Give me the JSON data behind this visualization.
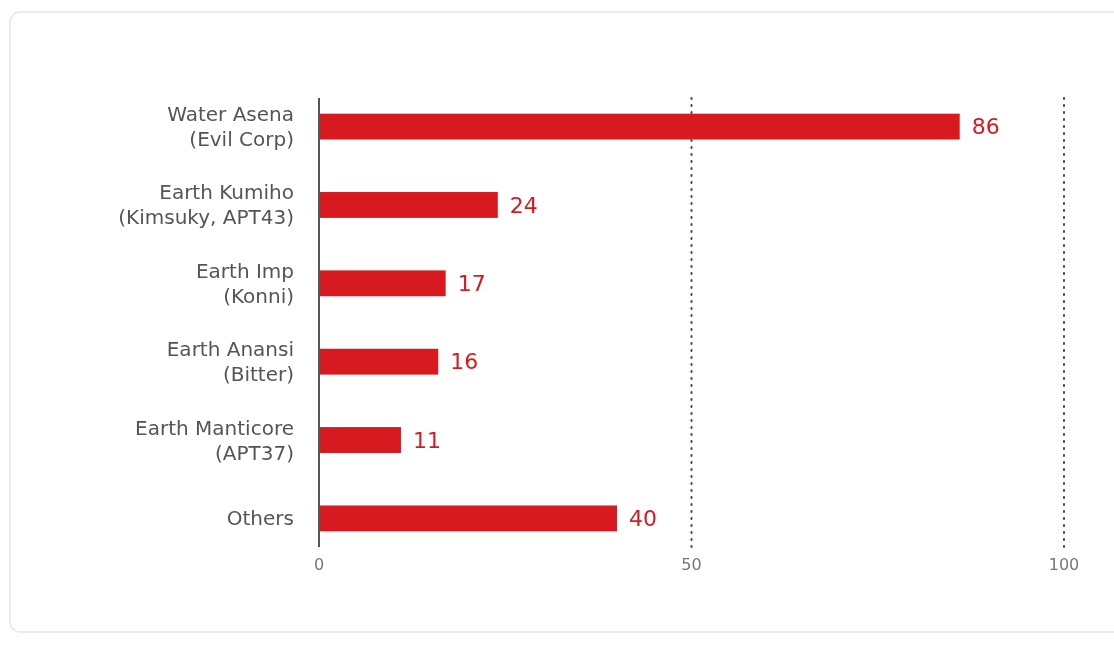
{
  "chart_data": {
    "type": "bar",
    "orientation": "horizontal",
    "categories": [
      "Water Asena\n(Evil Corp)",
      "Earth Kumiho\n(Kimsuky, APT43)",
      "Earth Imp\n(Konni)",
      "Earth Anansi\n(Bitter)",
      "Earth Manticore\n(APT37)",
      "Others"
    ],
    "values": [
      86,
      24,
      17,
      16,
      11,
      40
    ],
    "color": "#d71920",
    "xlim": [
      0,
      100
    ],
    "xticks": [
      0,
      50,
      100
    ],
    "grid": "x",
    "data_labels": true
  }
}
